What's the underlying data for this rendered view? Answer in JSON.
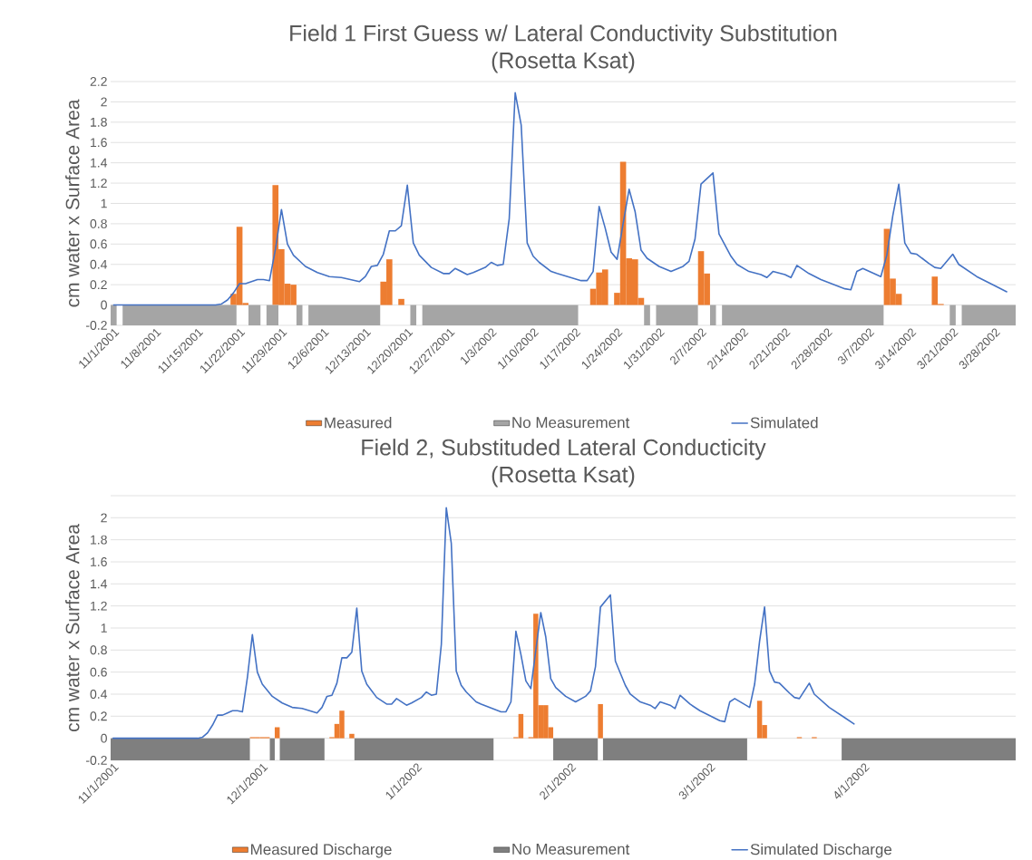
{
  "chart_data": [
    {
      "type": "bar",
      "title": "Field 1 First Guess w/ Lateral Conductivity Substitution",
      "subtitle": "(Rosetta Ksat)",
      "ylabel": "cm water x Surface Area",
      "xlim": [
        "2001-10-31T12:00",
        "2002-03-31T12:00"
      ],
      "xticks": [
        {
          "value": "2001-11-01",
          "label": "11/1/2001"
        },
        {
          "value": "2001-11-08",
          "label": "11/8/2001"
        },
        {
          "value": "2001-11-15",
          "label": "11/15/2001"
        },
        {
          "value": "2001-11-22",
          "label": "11/22/2001"
        },
        {
          "value": "2001-11-29",
          "label": "11/29/2001"
        },
        {
          "value": "2001-12-06",
          "label": "12/6/2001"
        },
        {
          "value": "2001-12-13",
          "label": "12/13/2001"
        },
        {
          "value": "2001-12-20",
          "label": "12/20/2001"
        },
        {
          "value": "2001-12-27",
          "label": "12/27/2001"
        },
        {
          "value": "2002-01-03",
          "label": "1/3/2002"
        },
        {
          "value": "2002-01-10",
          "label": "1/10/2002"
        },
        {
          "value": "2002-01-17",
          "label": "1/17/2002"
        },
        {
          "value": "2002-01-24",
          "label": "1/24/2002"
        },
        {
          "value": "2002-01-31",
          "label": "1/31/2002"
        },
        {
          "value": "2002-02-07",
          "label": "2/7/2002"
        },
        {
          "value": "2002-02-14",
          "label": "2/14/2002"
        },
        {
          "value": "2002-02-21",
          "label": "2/21/2002"
        },
        {
          "value": "2002-02-28",
          "label": "2/28/2002"
        },
        {
          "value": "2002-03-07",
          "label": "3/7/2002"
        },
        {
          "value": "2002-03-14",
          "label": "3/14/2002"
        },
        {
          "value": "2002-03-21",
          "label": "3/21/2002"
        },
        {
          "value": "2002-03-28",
          "label": "3/28/2002"
        }
      ],
      "ylim": [
        -0.2,
        2.2
      ],
      "yticks": [
        -0.2,
        0,
        0.2,
        0.4,
        0.6,
        0.8,
        1,
        1.2,
        1.4,
        1.6,
        1.8,
        2,
        2.2
      ],
      "grid": "y",
      "legend": "bottom",
      "bands": [
        {
          "axis": "x",
          "from": "2001-10-31T12:00",
          "to": "2001-11-01T12:00",
          "label": "No Measurement",
          "color": "#a5a5a5"
        },
        {
          "axis": "x",
          "from": "2001-11-02T12:00",
          "to": "2001-11-21T12:00",
          "color": "#a5a5a5"
        },
        {
          "axis": "x",
          "from": "2001-11-23T12:00",
          "to": "2001-11-25T12:00",
          "color": "#a5a5a5"
        },
        {
          "axis": "x",
          "from": "2001-11-26T12:00",
          "to": "2001-11-28T12:00",
          "color": "#a5a5a5"
        },
        {
          "axis": "x",
          "from": "2001-12-01T12:00",
          "to": "2001-12-02T12:00",
          "color": "#a5a5a5"
        },
        {
          "axis": "x",
          "from": "2001-12-03T12:00",
          "to": "2001-12-15T12:00",
          "color": "#a5a5a5"
        },
        {
          "axis": "x",
          "from": "2001-12-20T12:00",
          "to": "2001-12-21T12:00",
          "color": "#a5a5a5"
        },
        {
          "axis": "x",
          "from": "2001-12-22T12:00",
          "to": "2002-01-17T12:00",
          "color": "#a5a5a5"
        },
        {
          "axis": "x",
          "from": "2002-01-28T12:00",
          "to": "2002-01-29T12:00",
          "color": "#a5a5a5"
        },
        {
          "axis": "x",
          "from": "2002-01-30T12:00",
          "to": "2002-02-06T12:00",
          "color": "#a5a5a5"
        },
        {
          "axis": "x",
          "from": "2002-02-08T12:00",
          "to": "2002-02-09T12:00",
          "color": "#a5a5a5"
        },
        {
          "axis": "x",
          "from": "2002-02-10T12:00",
          "to": "2002-03-09T12:00",
          "color": "#a5a5a5"
        },
        {
          "axis": "x",
          "from": "2002-03-20T12:00",
          "to": "2002-03-21T12:00",
          "color": "#a5a5a5"
        },
        {
          "axis": "x",
          "from": "2002-03-22T12:00",
          "to": "2002-03-31T12:00",
          "color": "#a5a5a5"
        }
      ],
      "series": [
        {
          "name": "Measured",
          "color": "#ed7d31",
          "x": [
            "2001-11-21",
            "2001-11-22",
            "2001-11-23",
            "2001-11-28",
            "2001-11-29",
            "2001-11-30",
            "2001-12-01",
            "2001-12-16",
            "2001-12-17",
            "2001-12-19",
            "2002-01-20",
            "2002-01-21",
            "2002-01-22",
            "2002-01-24",
            "2002-01-25",
            "2002-01-26",
            "2002-01-27",
            "2002-01-28",
            "2002-02-07",
            "2002-02-08",
            "2002-03-10",
            "2002-03-11",
            "2002-03-12",
            "2002-03-18",
            "2002-03-19"
          ],
          "values": [
            0.11,
            0.77,
            0.02,
            1.18,
            0.55,
            0.21,
            0.2,
            0.23,
            0.45,
            0.06,
            0.16,
            0.32,
            0.35,
            0.12,
            1.41,
            0.46,
            0.45,
            0.07,
            0.53,
            0.31,
            0.75,
            0.26,
            0.11,
            0.28,
            0.01
          ]
        },
        {
          "name": "Simulated",
          "type": "line",
          "color": "#4472c4",
          "x": [
            "2001-11-01",
            "2001-11-18",
            "2001-11-19",
            "2001-11-20",
            "2001-11-21",
            "2001-11-22",
            "2001-11-23",
            "2001-11-24",
            "2001-11-25",
            "2001-11-26",
            "2001-11-27",
            "2001-11-28",
            "2001-11-29",
            "2001-11-30",
            "2001-12-01",
            "2001-12-03",
            "2001-12-05",
            "2001-12-07",
            "2001-12-09",
            "2001-12-12",
            "2001-12-13",
            "2001-12-14",
            "2001-12-15",
            "2001-12-16",
            "2001-12-17",
            "2001-12-18",
            "2001-12-19",
            "2001-12-20",
            "2001-12-21",
            "2001-12-22",
            "2001-12-24",
            "2001-12-26",
            "2001-12-27",
            "2001-12-28",
            "2001-12-30",
            "2001-12-31",
            "2002-01-02",
            "2002-01-03",
            "2002-01-04",
            "2002-01-05",
            "2002-01-06",
            "2002-01-07",
            "2002-01-08",
            "2002-01-09",
            "2002-01-10",
            "2002-01-11",
            "2002-01-13",
            "2002-01-14",
            "2002-01-18",
            "2002-01-19",
            "2002-01-20",
            "2002-01-21",
            "2002-01-22",
            "2002-01-23",
            "2002-01-24",
            "2002-01-25",
            "2002-01-26",
            "2002-01-27",
            "2002-01-28",
            "2002-01-29",
            "2002-01-31",
            "2002-02-02",
            "2002-02-04",
            "2002-02-05",
            "2002-02-06",
            "2002-02-07",
            "2002-02-09",
            "2002-02-10",
            "2002-02-12",
            "2002-02-13",
            "2002-02-15",
            "2002-02-17",
            "2002-02-18",
            "2002-02-19",
            "2002-02-21",
            "2002-02-22",
            "2002-02-23",
            "2002-02-25",
            "2002-02-27",
            "2002-03-03",
            "2002-03-04",
            "2002-03-05",
            "2002-03-06",
            "2002-03-09",
            "2002-03-10",
            "2002-03-11",
            "2002-03-12",
            "2002-03-13",
            "2002-03-14",
            "2002-03-15",
            "2002-03-17",
            "2002-03-18",
            "2002-03-19",
            "2002-03-21",
            "2002-03-22",
            "2002-03-25",
            "2002-03-28",
            "2002-03-30"
          ],
          "values": [
            0,
            0,
            0.01,
            0.05,
            0.12,
            0.21,
            0.21,
            0.23,
            0.25,
            0.25,
            0.24,
            0.55,
            0.94,
            0.6,
            0.49,
            0.38,
            0.32,
            0.28,
            0.27,
            0.23,
            0.28,
            0.38,
            0.39,
            0.5,
            0.73,
            0.73,
            0.78,
            1.18,
            0.61,
            0.49,
            0.37,
            0.31,
            0.31,
            0.36,
            0.3,
            0.32,
            0.37,
            0.42,
            0.39,
            0.4,
            0.85,
            2.09,
            1.77,
            0.61,
            0.48,
            0.42,
            0.33,
            0.31,
            0.24,
            0.24,
            0.33,
            0.97,
            0.76,
            0.52,
            0.45,
            0.8,
            1.14,
            0.92,
            0.54,
            0.46,
            0.38,
            0.33,
            0.38,
            0.43,
            0.65,
            1.19,
            1.3,
            0.7,
            0.48,
            0.4,
            0.33,
            0.3,
            0.27,
            0.33,
            0.3,
            0.27,
            0.39,
            0.31,
            0.25,
            0.16,
            0.15,
            0.33,
            0.36,
            0.28,
            0.49,
            0.88,
            1.19,
            0.61,
            0.51,
            0.5,
            0.41,
            0.37,
            0.36,
            0.5,
            0.4,
            0.28,
            0.19,
            0.13
          ]
        }
      ]
    },
    {
      "type": "bar",
      "title": "Field 2, Substituded Lateral Conducticity",
      "subtitle": "(Rosetta Ksat)",
      "ylabel": "cm water x Surface Area",
      "xlim": [
        "2001-10-31T12:00",
        "2002-05-01T12:00"
      ],
      "xticks": [
        {
          "value": "2001-11-01",
          "label": "11/1/2001"
        },
        {
          "value": "2001-12-01",
          "label": "12/1/2001"
        },
        {
          "value": "2002-01-01",
          "label": "1/1/2002"
        },
        {
          "value": "2002-02-01",
          "label": "2/1/2002"
        },
        {
          "value": "2002-03-01",
          "label": "3/1/2002"
        },
        {
          "value": "2002-04-01",
          "label": "4/1/2002"
        }
      ],
      "ylim": [
        -0.2,
        2.2
      ],
      "yticks": [
        -0.2,
        0,
        0.2,
        0.4,
        0.6,
        0.8,
        1,
        1.2,
        1.4,
        1.6,
        1.8,
        2,
        {
          "value": 2.2,
          "label": null
        }
      ],
      "grid": "y",
      "legend": "bottom",
      "bands": [
        {
          "axis": "x",
          "from": "2001-10-31T12:00",
          "to": "2001-11-28T12:00",
          "label": "No Measurement",
          "color": "#7f7f7f"
        },
        {
          "axis": "x",
          "from": "2001-12-02T12:00",
          "to": "2001-12-03T12:00",
          "color": "#7f7f7f"
        },
        {
          "axis": "x",
          "from": "2001-12-04T12:00",
          "to": "2001-12-13T12:00",
          "color": "#7f7f7f"
        },
        {
          "axis": "x",
          "from": "2001-12-19T12:00",
          "to": "2002-01-16T12:00",
          "color": "#7f7f7f"
        },
        {
          "axis": "x",
          "from": "2002-01-28T12:00",
          "to": "2002-02-06T12:00",
          "color": "#7f7f7f"
        },
        {
          "axis": "x",
          "from": "2002-02-07T12:00",
          "to": "2002-03-08T12:00",
          "color": "#7f7f7f"
        },
        {
          "axis": "x",
          "from": "2002-03-27T12:00",
          "to": "2002-05-01T12:00",
          "color": "#7f7f7f"
        }
      ],
      "series": [
        {
          "name": "Measured Discharge",
          "color": "#ed7d31",
          "x": [
            "2001-11-29",
            "2001-11-30",
            "2001-12-01",
            "2001-12-02",
            "2001-12-04",
            "2001-12-15",
            "2001-12-16",
            "2001-12-17",
            "2001-12-19",
            "2002-01-21",
            "2002-01-22",
            "2002-01-24",
            "2002-01-25",
            "2002-01-26",
            "2002-01-27",
            "2002-01-28",
            "2002-02-07",
            "2002-03-11",
            "2002-03-12",
            "2002-03-19",
            "2002-03-22"
          ],
          "values": [
            0.01,
            0.01,
            0.01,
            0.01,
            0.1,
            0.01,
            0.13,
            0.25,
            0.04,
            0.01,
            0.22,
            0.01,
            1.13,
            0.3,
            0.3,
            0.1,
            0.31,
            0.34,
            0.12,
            0.01,
            0.01
          ]
        },
        {
          "name": "Simulated Discharge",
          "type": "line",
          "color": "#4472c4",
          "x": [
            "2001-11-01",
            "2001-11-18",
            "2001-11-19",
            "2001-11-20",
            "2001-11-21",
            "2001-11-22",
            "2001-11-23",
            "2001-11-24",
            "2001-11-25",
            "2001-11-26",
            "2001-11-27",
            "2001-11-28",
            "2001-11-29",
            "2001-11-30",
            "2001-12-01",
            "2001-12-03",
            "2001-12-05",
            "2001-12-07",
            "2001-12-09",
            "2001-12-12",
            "2001-12-13",
            "2001-12-14",
            "2001-12-15",
            "2001-12-16",
            "2001-12-17",
            "2001-12-18",
            "2001-12-19",
            "2001-12-20",
            "2001-12-21",
            "2001-12-22",
            "2001-12-24",
            "2001-12-26",
            "2001-12-27",
            "2001-12-28",
            "2001-12-30",
            "2001-12-31",
            "2002-01-02",
            "2002-01-03",
            "2002-01-04",
            "2002-01-05",
            "2002-01-06",
            "2002-01-07",
            "2002-01-08",
            "2002-01-09",
            "2002-01-10",
            "2002-01-11",
            "2002-01-13",
            "2002-01-14",
            "2002-01-18",
            "2002-01-19",
            "2002-01-20",
            "2002-01-21",
            "2002-01-22",
            "2002-01-23",
            "2002-01-24",
            "2002-01-25",
            "2002-01-26",
            "2002-01-27",
            "2002-01-28",
            "2002-01-29",
            "2002-01-31",
            "2002-02-02",
            "2002-02-04",
            "2002-02-05",
            "2002-02-06",
            "2002-02-07",
            "2002-02-09",
            "2002-02-10",
            "2002-02-12",
            "2002-02-13",
            "2002-02-15",
            "2002-02-17",
            "2002-02-18",
            "2002-02-19",
            "2002-02-21",
            "2002-02-22",
            "2002-02-23",
            "2002-02-25",
            "2002-02-27",
            "2002-03-03",
            "2002-03-04",
            "2002-03-05",
            "2002-03-06",
            "2002-03-09",
            "2002-03-10",
            "2002-03-11",
            "2002-03-12",
            "2002-03-13",
            "2002-03-14",
            "2002-03-15",
            "2002-03-17",
            "2002-03-18",
            "2002-03-19",
            "2002-03-21",
            "2002-03-22",
            "2002-03-25",
            "2002-03-28",
            "2002-03-30"
          ],
          "values": [
            0,
            0,
            0.01,
            0.05,
            0.12,
            0.21,
            0.21,
            0.23,
            0.25,
            0.25,
            0.24,
            0.55,
            0.94,
            0.6,
            0.49,
            0.38,
            0.32,
            0.28,
            0.27,
            0.23,
            0.28,
            0.38,
            0.39,
            0.5,
            0.73,
            0.73,
            0.78,
            1.18,
            0.61,
            0.49,
            0.37,
            0.31,
            0.31,
            0.36,
            0.3,
            0.32,
            0.37,
            0.42,
            0.39,
            0.4,
            0.85,
            2.09,
            1.77,
            0.61,
            0.48,
            0.42,
            0.33,
            0.31,
            0.24,
            0.24,
            0.33,
            0.97,
            0.76,
            0.52,
            0.45,
            0.8,
            1.14,
            0.92,
            0.54,
            0.46,
            0.38,
            0.33,
            0.38,
            0.43,
            0.65,
            1.19,
            1.3,
            0.7,
            0.48,
            0.4,
            0.33,
            0.3,
            0.27,
            0.33,
            0.3,
            0.27,
            0.39,
            0.31,
            0.25,
            0.16,
            0.15,
            0.33,
            0.36,
            0.28,
            0.49,
            0.88,
            1.19,
            0.61,
            0.51,
            0.5,
            0.41,
            0.37,
            0.36,
            0.5,
            0.4,
            0.28,
            0.19,
            0.13
          ]
        }
      ]
    }
  ]
}
